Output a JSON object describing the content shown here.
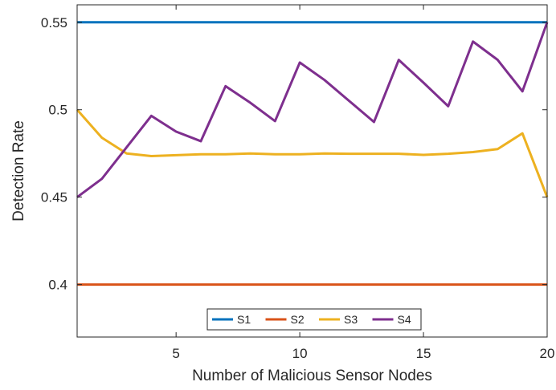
{
  "chart_data": {
    "type": "line",
    "xlabel": "Number of Malicious Sensor Nodes",
    "ylabel": "Detection Rate",
    "xlim": [
      1,
      20
    ],
    "ylim": [
      0.37,
      0.56
    ],
    "xticks": [
      5,
      10,
      15,
      20
    ],
    "yticks": [
      0.4,
      0.45,
      0.5,
      0.55
    ],
    "xtick_labels": [
      "5",
      "10",
      "15",
      "20"
    ],
    "ytick_labels": [
      "0.4",
      "0.45",
      "0.5",
      "0.55"
    ],
    "grid": false,
    "legend_position": "bottom-center",
    "x": [
      1,
      2,
      3,
      4,
      5,
      6,
      7,
      8,
      9,
      10,
      11,
      12,
      13,
      14,
      15,
      16,
      17,
      18,
      19,
      20
    ],
    "series": [
      {
        "name": "S1",
        "color": "#0072BD",
        "values": [
          0.55,
          0.55,
          0.55,
          0.55,
          0.55,
          0.55,
          0.55,
          0.55,
          0.55,
          0.55,
          0.55,
          0.55,
          0.55,
          0.55,
          0.55,
          0.55,
          0.55,
          0.55,
          0.55,
          0.55
        ]
      },
      {
        "name": "S2",
        "color": "#D95319",
        "values": [
          0.4,
          0.4,
          0.4,
          0.4,
          0.4,
          0.4,
          0.4,
          0.4,
          0.4,
          0.4,
          0.4,
          0.4,
          0.4,
          0.4,
          0.4,
          0.4,
          0.4,
          0.4,
          0.4,
          0.4
        ]
      },
      {
        "name": "S3",
        "color": "#EDB120",
        "values": [
          0.5,
          0.484,
          0.475,
          0.4735,
          0.474,
          0.4745,
          0.4745,
          0.475,
          0.4745,
          0.4745,
          0.475,
          0.4748,
          0.4748,
          0.4748,
          0.4742,
          0.4748,
          0.4758,
          0.4775,
          0.4865,
          0.45
        ]
      },
      {
        "name": "S4",
        "color": "#7E2F8E",
        "values": [
          0.45,
          0.4605,
          0.4785,
          0.4965,
          0.4875,
          0.482,
          0.5135,
          0.504,
          0.4935,
          0.527,
          0.517,
          0.505,
          0.493,
          0.5285,
          0.5155,
          0.502,
          0.539,
          0.5285,
          0.5105,
          0.55
        ]
      }
    ]
  }
}
